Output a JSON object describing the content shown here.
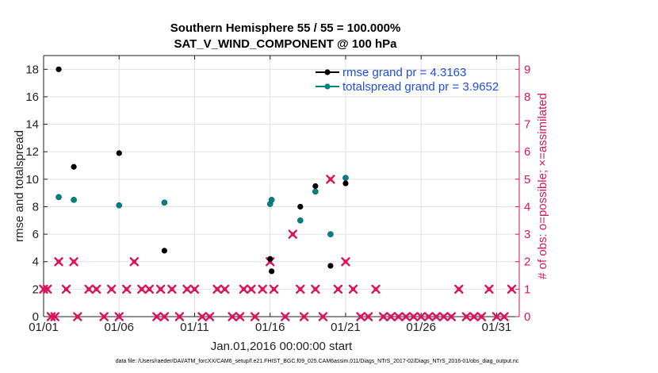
{
  "chart_data": {
    "type": "scatter",
    "title": "Southern Hemisphere 55 / 55 = 100.000%",
    "subtitle": "SAT_V_WIND_COMPONENT @ 100 hPa",
    "xlabel": "Jan.01,2016 00:00:00 start",
    "ylabel": "rmse and totalspread",
    "y2label": "# of obs: o=possible; ×=assimilated",
    "footer": "data file: /Users/raeder/DAI/ATM_forcXX/CAM6_setup/f.e21.FHIST_BGC.f09_025.CAM6assim.011/Diags_NTrS_2017-02/Diags_NTrS_2016-01/obs_diag_output.nc",
    "xlim": [
      0,
      31.5
    ],
    "ylim": [
      0,
      19
    ],
    "y2lim": [
      0,
      9.5
    ],
    "x_ticks": [
      0,
      5,
      10,
      15,
      20,
      25,
      30
    ],
    "x_tick_labels": [
      "01/01",
      "01/06",
      "01/11",
      "01/16",
      "01/21",
      "01/26",
      "01/31"
    ],
    "y_ticks": [
      0,
      2,
      4,
      6,
      8,
      10,
      12,
      14,
      16,
      18
    ],
    "y2_ticks": [
      0,
      1,
      2,
      3,
      4,
      5,
      6,
      7,
      8,
      9
    ],
    "legend_position": "top-right",
    "colors": {
      "rmse": "#000000",
      "spread": "#008080",
      "obs": "#d9155b",
      "legend_text": "#1f4fd6"
    },
    "series": [
      {
        "name": "rmse grand pr = 4.3163",
        "x": [
          1.0,
          2.0,
          5.0,
          8.0,
          15.0,
          15.1,
          17.0,
          18.0,
          19.0,
          20.0
        ],
        "values": [
          18.0,
          10.9,
          11.9,
          4.8,
          4.2,
          3.3,
          8.0,
          9.5,
          3.7,
          9.7
        ]
      },
      {
        "name": "totalspread grand pr = 3.9652",
        "x": [
          1.0,
          2.0,
          5.0,
          8.0,
          15.0,
          15.1,
          17.0,
          18.0,
          19.0,
          20.0
        ],
        "values": [
          8.7,
          8.5,
          8.1,
          8.3,
          8.2,
          8.5,
          7.0,
          9.1,
          6.0,
          10.1
        ]
      },
      {
        "name": "# of obs assimilated",
        "axis": "right",
        "x": [
          0,
          0.25,
          0.5,
          0.75,
          1.0,
          1.5,
          2.0,
          2.25,
          3.0,
          3.5,
          4.0,
          4.5,
          5.0,
          5.5,
          6.0,
          6.5,
          7.0,
          7.5,
          7.75,
          8.0,
          8.5,
          9.0,
          9.5,
          10.0,
          10.5,
          11.0,
          11.5,
          12.0,
          12.5,
          13.0,
          13.25,
          13.75,
          14.0,
          14.5,
          15.0,
          15.25,
          16.0,
          16.5,
          17.0,
          17.25,
          18.0,
          18.5,
          19.0,
          19.5,
          20.0,
          20.5,
          21.0,
          21.5,
          22.0,
          22.5,
          23.0,
          23.5,
          24.0,
          24.5,
          25.0,
          25.5,
          26.0,
          26.5,
          27.0,
          27.5,
          28.0,
          28.5,
          29.0,
          29.5,
          30.0,
          30.5,
          31.0
        ],
        "values": [
          1,
          1,
          0,
          0,
          2,
          1,
          2,
          0,
          1,
          1,
          0,
          1,
          0,
          1,
          2,
          1,
          1,
          0,
          1,
          0,
          1,
          0,
          1,
          1,
          0,
          0,
          1,
          1,
          0,
          0,
          1,
          1,
          0,
          1,
          2,
          1,
          0,
          3,
          1,
          0,
          1,
          0,
          5,
          1,
          2,
          1,
          0,
          0,
          1,
          0,
          0,
          0,
          0,
          0,
          0,
          0,
          0,
          0,
          0,
          1,
          0,
          0,
          0,
          1,
          0,
          0,
          1
        ]
      }
    ]
  }
}
